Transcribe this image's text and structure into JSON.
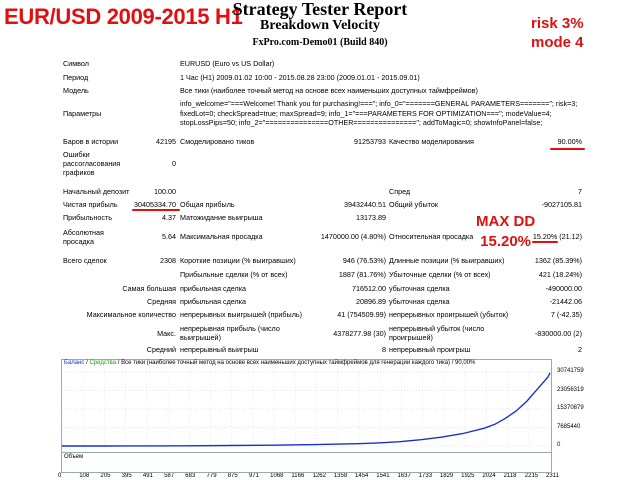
{
  "overlay": {
    "title": "EUR/USD 2009-2015 H1",
    "risk": "risk 3%",
    "mode": "mode 4",
    "maxdd_label": "MAX DD",
    "maxdd_value": "15.20%"
  },
  "header": {
    "title": "Strategy Tester Report",
    "subtitle": "Breakdown Velocity",
    "build": "FxPro.com-Demo01 (Build 840)"
  },
  "info": {
    "symbol_label": "Символ",
    "symbol_value": "EURUSD (Euro vs US Dollar)",
    "period_label": "Период",
    "period_value": "1 Час (H1) 2009.01.02 10:00 - 2015.08.28 23:00 (2009.01.01 - 2015.09.01)",
    "model_label": "Модель",
    "model_value": "Все тики (наиболее точный метод на основе всех наименьших доступных таймфреймов)",
    "params_label": "Параметры",
    "params_value": "info_welcome=\"===Welcome! Thank you for purchasing!===\"; info_0=\"=======GENERAL PARAMETERS=======\"; risk=3; fixedLot=0; checkSpread=true; maxSpread=9; info_1=\"===PARAMETERS FOR OPTIMIZATION===\"; modeValue=4; stopLossPips=50; info_2=\"===============OTHER===============\"; addToMagic=0; showInfoPanel=false;"
  },
  "stats": {
    "bars_label": "Баров в истории",
    "bars_value": "42195",
    "ticks_label": "Смоделировано тиков",
    "ticks_value": "91253793",
    "quality_label": "Качество моделирования",
    "quality_value": "90.00%",
    "errors_label1": "Ошибки",
    "errors_label2": "рассогласования",
    "errors_label3": "графиков",
    "errors_value": "0",
    "deposit_label": "Начальный депозит",
    "deposit_value": "100.00",
    "spread_label": "Спред",
    "spread_value": "7",
    "net_label": "Чистая прибыль",
    "net_value": "30405334.70",
    "gross_profit_label": "Общая прибыль",
    "gross_profit_value": "39432440.51",
    "gross_loss_label": "Общий убыток",
    "gross_loss_value": "-9027105.81",
    "pf_label": "Прибыльность",
    "pf_value": "4.37",
    "expected_label": "Матожидание выигрыша",
    "expected_value": "13173.89",
    "abs_dd_label1": "Абсолютная",
    "abs_dd_label2": "просадка",
    "abs_dd_value": "5.64",
    "max_dd_label": "Максимальная просадка",
    "max_dd_value": "1470000.00 (4.80%)",
    "rel_dd_label": "Относительная просадка",
    "rel_dd_value": "15.20% (21.12)",
    "trades_label": "Всего сделок",
    "trades_value": "2308",
    "short_label": "Короткие позиции (% выигравших)",
    "short_value": "946 (76.53%)",
    "long_label": "Длинные позиции (% выигравших)",
    "long_value": "1362 (85.39%)",
    "profit_trades_label": "Прибыльные сделки (% от всех)",
    "profit_trades_value": "1887 (81.76%)",
    "loss_trades_label": "Убыточные сделки (% от всех)",
    "loss_trades_value": "421 (18.24%)",
    "largest_label": "Самая большая",
    "largest_profit_label": "прибыльная сделка",
    "largest_profit_value": "716512.00",
    "largest_loss_label": "убыточная сделка",
    "largest_loss_value": "-490000.00",
    "average_label": "Средняя",
    "avg_profit_label": "прибыльная сделка",
    "avg_profit_value": "20896.89",
    "avg_loss_label": "убыточная сделка",
    "avg_loss_value": "-21442.06",
    "max_count_label": "Максимальное количество",
    "cons_wins_label": "непрерывных выигрышей (прибыль)",
    "cons_wins_value": "41 (754509.99)",
    "cons_losses_label": "непрерывных проигрышей (убыток)",
    "cons_losses_value": "7 (-42.35)",
    "max_label": "Макс.",
    "max_profit_label1": "непрерывная прибыль (число",
    "max_profit_label2": "выигрышей)",
    "max_profit_value": "4378277.98 (30)",
    "max_loss_label1": "непрерывный убыток (число",
    "max_loss_label2": "проигрышей)",
    "max_loss_value": "-830000.00 (2)",
    "avg_cons_label": "Средний",
    "avg_cons_wins_label": "непрерывный выигрыш",
    "avg_cons_wins_value": "8",
    "avg_cons_losses_label": "непрерывный проигрыш",
    "avg_cons_losses_value": "2"
  },
  "chart_legend": {
    "balance": "Баланс",
    "equity": "Средства",
    "rest": "Все тики (наиболее точный метод на основе всех наименьших доступных таймфреймов для генерации каждого тика) / 90,00%",
    "volume": "Объем"
  },
  "chart_data": {
    "type": "line",
    "series": [
      {
        "name": "Баланс",
        "color": "#1a32c8"
      }
    ],
    "y_ticks": [
      "30741759",
      "23056319",
      "15370879",
      "7685440",
      "0"
    ],
    "x_ticks": [
      "0",
      "108",
      "205",
      "395",
      "491",
      "587",
      "683",
      "779",
      "875",
      "971",
      "1068",
      "1166",
      "1262",
      "1358",
      "1454",
      "1541",
      "1637",
      "1733",
      "1829",
      "1925",
      "2024",
      "2118",
      "2215",
      "2311"
    ],
    "x": [
      0,
      200,
      400,
      600,
      800,
      1000,
      1200,
      1400,
      1500,
      1600,
      1700,
      1800,
      1900,
      2000,
      2050,
      2100,
      2150,
      2200,
      2250,
      2300,
      2311
    ],
    "y": [
      100,
      5000,
      30000,
      90000,
      200000,
      350000,
      600000,
      950000,
      1300000,
      1800000,
      2600000,
      3700000,
      5200000,
      7400000,
      9000000,
      11500000,
      14500000,
      18500000,
      23500000,
      28500000,
      30405434
    ],
    "ylim": [
      0,
      30741759
    ],
    "xlim": [
      0,
      2311
    ],
    "grid": true
  }
}
